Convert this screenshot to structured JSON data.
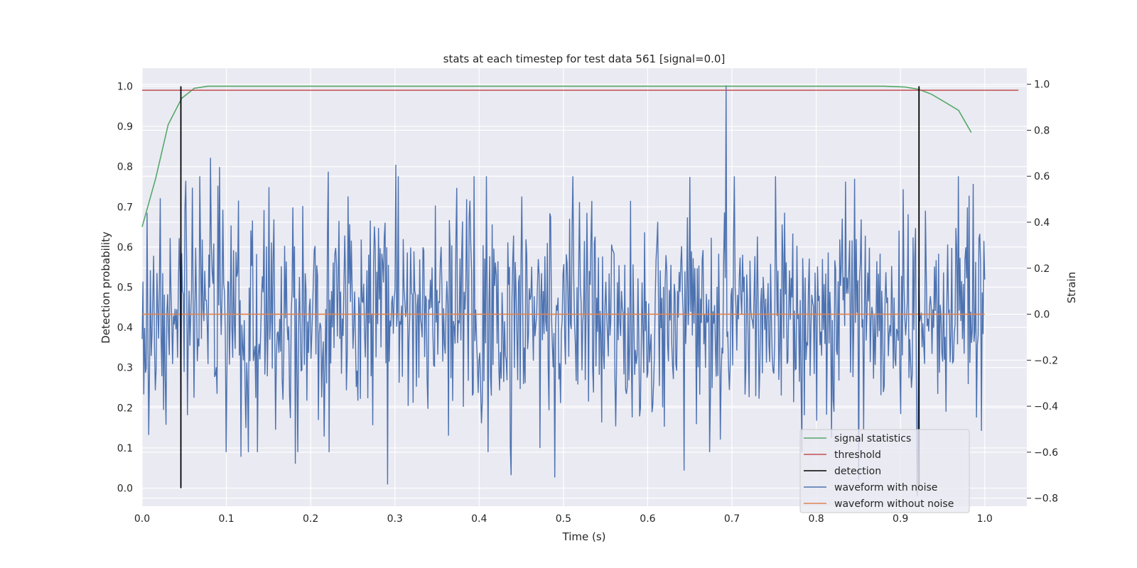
{
  "chart_data": {
    "type": "line",
    "title": "stats at each timestep for test data 561 [signal=0.0]",
    "xlabel": "Time (s)",
    "ylabel_left": "Detection probability",
    "ylabel_right": "Strain",
    "xlim": [
      0.0,
      1.05
    ],
    "ylim_left": [
      -0.045,
      1.045
    ],
    "ylim_right": [
      -0.835,
      1.07
    ],
    "x_ticks": [
      "0.0",
      "0.1",
      "0.2",
      "0.3",
      "0.4",
      "0.5",
      "0.6",
      "0.7",
      "0.8",
      "0.9",
      "1.0"
    ],
    "y_left_ticks": [
      "0.0",
      "0.1",
      "0.2",
      "0.3",
      "0.4",
      "0.5",
      "0.6",
      "0.7",
      "0.8",
      "0.9",
      "1.0"
    ],
    "y_right_ticks": [
      "−0.8",
      "−0.6",
      "−0.4",
      "−0.2",
      "0.0",
      "0.2",
      "0.4",
      "0.6",
      "0.8",
      "1.0"
    ],
    "grid": true,
    "legend_position": "lower-right",
    "colors": {
      "background": "#eaeaf2",
      "grid": "#ffffff",
      "signal_statistics": "#55a868",
      "threshold": "#c44e52",
      "detection": "#000000",
      "waveform_with_noise": "#4c72b0",
      "waveform_without_noise": "#dd8452"
    },
    "series": [
      {
        "name": "signal statistics",
        "axis": "left",
        "x": [
          0.0,
          0.016,
          0.031,
          0.047,
          0.062,
          0.078,
          0.1,
          0.2,
          0.3,
          0.4,
          0.5,
          0.6,
          0.7,
          0.8,
          0.88,
          0.906,
          0.922,
          0.937,
          0.953,
          0.969,
          0.984
        ],
        "y": [
          0.65,
          0.77,
          0.905,
          0.97,
          0.995,
          1.0,
          1.0,
          1.0,
          1.0,
          1.0,
          1.0,
          1.0,
          1.0,
          1.0,
          1.0,
          0.998,
          0.992,
          0.98,
          0.96,
          0.94,
          0.885
        ]
      },
      {
        "name": "threshold",
        "axis": "left",
        "x": [
          0.0,
          1.04
        ],
        "y": [
          0.99,
          0.99
        ]
      },
      {
        "name": "detection",
        "axis": "left",
        "type": "vlines",
        "x": [
          0.046,
          0.922
        ],
        "ymin": 0.0,
        "ymax": 1.0
      },
      {
        "name": "waveform with noise",
        "axis": "right",
        "points": 1024,
        "x_range": [
          0.0,
          1.0
        ],
        "std": 0.24,
        "annotated_extremes": [
          {
            "x": 0.045,
            "y": 0.17
          },
          {
            "x": 0.052,
            "y": 0.58
          },
          {
            "x": 0.06,
            "y": 0.55
          },
          {
            "x": 0.081,
            "y": 0.68
          },
          {
            "x": 0.092,
            "y": 0.64
          },
          {
            "x": 0.1,
            "y": -0.6
          },
          {
            "x": 0.117,
            "y": -0.62
          },
          {
            "x": 0.182,
            "y": -0.65
          },
          {
            "x": 0.221,
            "y": 0.62
          },
          {
            "x": 0.291,
            "y": -0.74
          },
          {
            "x": 0.301,
            "y": 0.65
          },
          {
            "x": 0.394,
            "y": 0.6
          },
          {
            "x": 0.438,
            "y": -0.7
          },
          {
            "x": 0.49,
            "y": -0.71
          },
          {
            "x": 0.643,
            "y": -0.68
          },
          {
            "x": 0.693,
            "y": 0.995
          },
          {
            "x": 0.85,
            "y": -0.72
          },
          {
            "x": 0.92,
            "y": -0.79
          }
        ]
      },
      {
        "name": "waveform without noise",
        "axis": "right",
        "x": [
          0.0,
          1.0
        ],
        "y": [
          0.0,
          0.0
        ]
      }
    ]
  }
}
